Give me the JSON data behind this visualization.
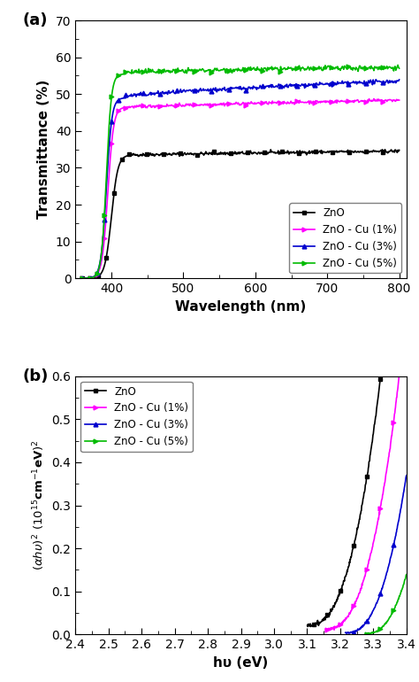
{
  "panel_a": {
    "xlabel": "Wavelength (nm)",
    "ylabel": "Transmittance (%)",
    "xlim": [
      350,
      810
    ],
    "ylim": [
      0,
      70
    ],
    "xticks": [
      400,
      500,
      600,
      700,
      800
    ],
    "yticks": [
      0,
      10,
      20,
      30,
      40,
      50,
      60,
      70
    ],
    "legend_labels": [
      "ZnO",
      "ZnO - Cu (1%)",
      "ZnO - Cu (3%)",
      "ZnO - Cu (5%)"
    ],
    "colors": [
      "#000000",
      "#ff00ff",
      "#0000cd",
      "#00bb00"
    ],
    "label_a": "(a)"
  },
  "panel_b": {
    "xlabel": "hυ (eV)",
    "xlim": [
      2.4,
      3.4
    ],
    "ylim": [
      0.0,
      0.6
    ],
    "xticks": [
      2.4,
      2.5,
      2.6,
      2.7,
      2.8,
      2.9,
      3.0,
      3.1,
      3.2,
      3.3,
      3.4
    ],
    "yticks": [
      0.0,
      0.1,
      0.2,
      0.3,
      0.4,
      0.5,
      0.6
    ],
    "legend_labels": [
      "ZnO",
      "ZnO - Cu (1%)",
      "ZnO - Cu (3%)",
      "ZnO - Cu (5%)"
    ],
    "colors": [
      "#000000",
      "#ff00ff",
      "#0000cd",
      "#00bb00"
    ],
    "label_b": "(b)",
    "onset_zno": 3.1,
    "onset_1pct": 3.155,
    "onset_3pct": 3.215,
    "onset_5pct": 3.275
  }
}
